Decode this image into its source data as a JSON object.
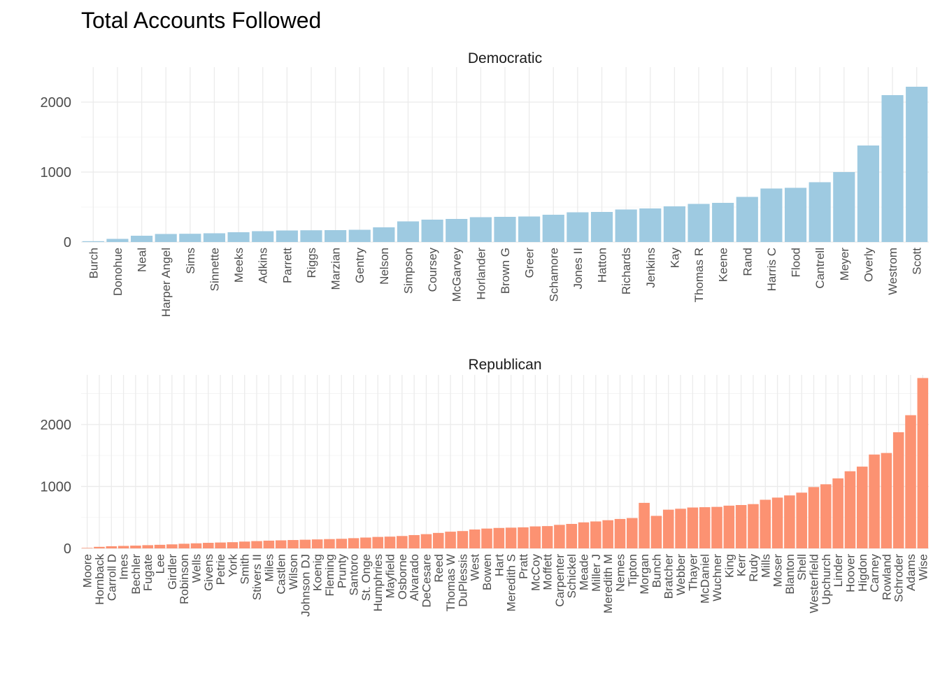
{
  "chart_data": {
    "type": "bar",
    "title": "Total Accounts Followed",
    "panels": [
      {
        "name": "Democratic",
        "color": "#9ecae1",
        "ylim": [
          0,
          2500
        ],
        "yticks": [
          0,
          1000,
          2000
        ],
        "categories": [
          "Burch",
          "Donohue",
          "Neal",
          "Harper Angel",
          "Sims",
          "Sinnette",
          "Meeks",
          "Adkins",
          "Parrett",
          "Riggs",
          "Marzian",
          "Gentry",
          "Nelson",
          "Simpson",
          "Coursey",
          "McGarvey",
          "Horlander",
          "Brown G",
          "Greer",
          "Schamore",
          "Jones II",
          "Hatton",
          "Richards",
          "Jenkins",
          "Kay",
          "Thomas R",
          "Keene",
          "Rand",
          "Harris C",
          "Flood",
          "Cantrell",
          "Meyer",
          "Overly",
          "Westrom",
          "Scott"
        ],
        "values": [
          12,
          45,
          90,
          115,
          118,
          125,
          140,
          155,
          165,
          168,
          170,
          175,
          210,
          295,
          320,
          330,
          355,
          360,
          365,
          390,
          425,
          430,
          465,
          480,
          510,
          545,
          560,
          645,
          765,
          775,
          855,
          1000,
          1380,
          2100,
          2220
        ]
      },
      {
        "name": "Republican",
        "color": "#fc9272",
        "ylim": [
          0,
          2800
        ],
        "yticks": [
          0,
          1000,
          2000
        ],
        "categories": [
          "Moore",
          "Hornback",
          "Carroll D",
          "Imes",
          "Bechler",
          "Fugate",
          "Lee",
          "Girdler",
          "Robinson",
          "Wells",
          "Givens",
          "Petrie",
          "York",
          "Smith",
          "Stivers II",
          "Miles",
          "Castlen",
          "Wilson",
          "Johnson DJ",
          "Koenig",
          "Fleming",
          "Prunty",
          "Santoro",
          "St. Onge",
          "Humphries",
          "Mayfield",
          "Osborne",
          "Alvarado",
          "DeCesare",
          "Reed",
          "Thomas W",
          "DuPlessis",
          "West",
          "Bowen",
          "Hart",
          "Meredith S",
          "Pratt",
          "McCoy",
          "Moffett",
          "Carpenter",
          "Schickel",
          "Meade",
          "Miller J",
          "Meredith M",
          "Nemes",
          "Tipton",
          "Morgan",
          "Bunch",
          "Bratcher",
          "Webber",
          "Thayer",
          "McDaniel",
          "Wuchner",
          "King",
          "Kerr",
          "Rudy",
          "Mills",
          "Moser",
          "Blanton",
          "Shell",
          "Westerfield",
          "Upchurch",
          "Linder",
          "Hoover",
          "Higdon",
          "Carney",
          "Rowland",
          "Schroder",
          "Adams",
          "Wise"
        ],
        "values": [
          8,
          25,
          35,
          40,
          45,
          52,
          58,
          65,
          75,
          82,
          90,
          95,
          100,
          110,
          118,
          125,
          130,
          135,
          140,
          145,
          150,
          155,
          165,
          175,
          185,
          190,
          200,
          215,
          230,
          250,
          270,
          280,
          305,
          320,
          330,
          335,
          340,
          355,
          360,
          380,
          395,
          420,
          435,
          455,
          475,
          490,
          735,
          525,
          625,
          640,
          660,
          665,
          670,
          690,
          700,
          715,
          785,
          820,
          855,
          900,
          990,
          1035,
          1130,
          1245,
          1320,
          1515,
          1540,
          1875,
          2150,
          2750
        ]
      }
    ]
  }
}
